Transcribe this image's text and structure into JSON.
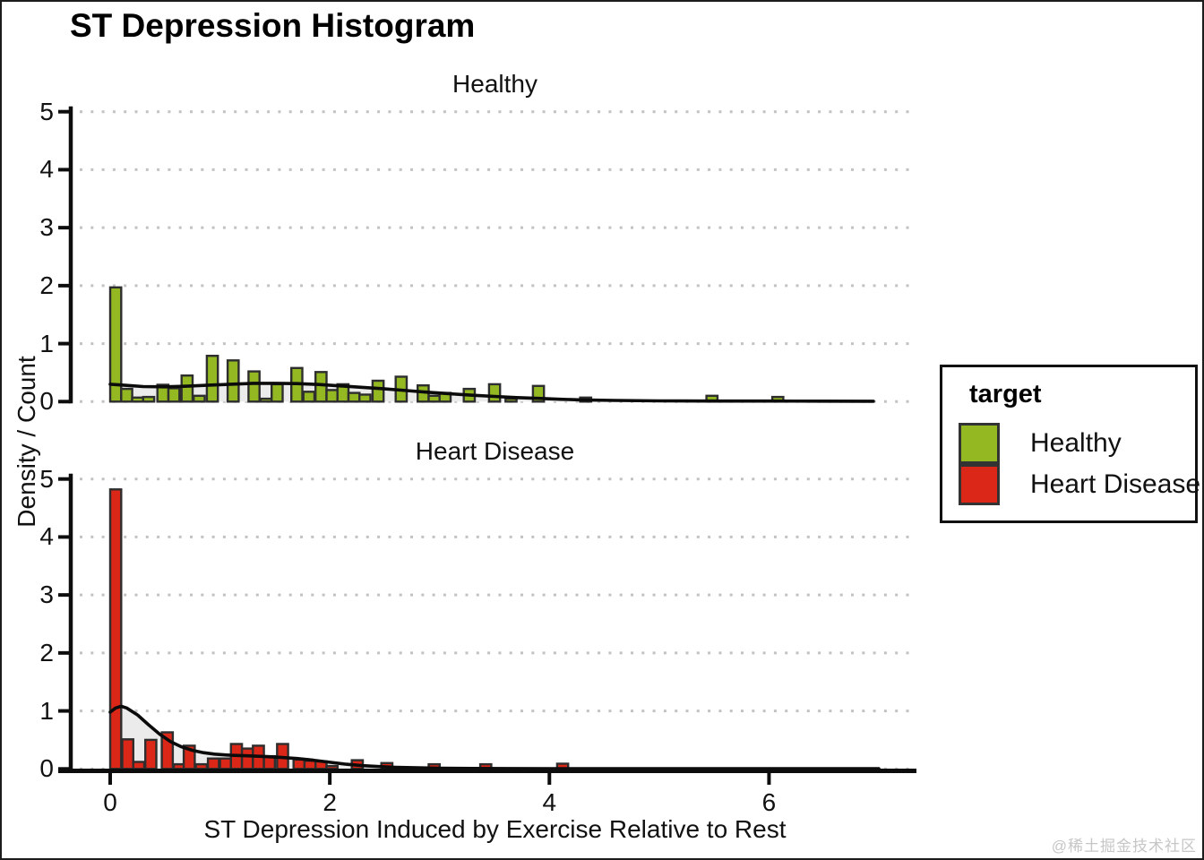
{
  "colors": {
    "healthy": "#93B821",
    "heart_disease": "#DB2718",
    "bar_border": "#2E2E2E",
    "density_fill": "#EBEBEB",
    "density_line": "#0B0B0B",
    "gridline": "#C2C2C2",
    "axis": "#0D0D0D",
    "watermark_text": "#C6C6C6"
  },
  "legend": {
    "title": "target",
    "items": [
      {
        "label": "Healthy",
        "color": "#93B821"
      },
      {
        "label": "Heart Disease",
        "color": "#DB2718"
      }
    ]
  },
  "watermark": "@稀土掘金技术社区",
  "chart_data": {
    "type": "histogram",
    "title": "ST Depression Histogram",
    "xlabel": "ST Depression Induced by Exercise Relative to Rest",
    "ylabel": "Density / Count",
    "xlim": [
      0,
      7.3
    ],
    "ylim": [
      0,
      5
    ],
    "x_ticks": [
      0,
      2,
      4,
      6
    ],
    "y_ticks": [
      0,
      1,
      2,
      3,
      4,
      5
    ],
    "bin_width": 0.1,
    "grid": "horizontal-dotted",
    "legend_position": "right",
    "overlay": "kernel-density-curve",
    "facets": [
      {
        "label": "Healthy",
        "color": "#93B821",
        "bars": [
          [
            0.05,
            1.97
          ],
          [
            0.15,
            0.22
          ],
          [
            0.25,
            0.07
          ],
          [
            0.35,
            0.08
          ],
          [
            0.48,
            0.29
          ],
          [
            0.58,
            0.23
          ],
          [
            0.7,
            0.45
          ],
          [
            0.81,
            0.1
          ],
          [
            0.93,
            0.79
          ],
          [
            1.12,
            0.71
          ],
          [
            1.31,
            0.52
          ],
          [
            1.42,
            0.05
          ],
          [
            1.52,
            0.3
          ],
          [
            1.7,
            0.58
          ],
          [
            1.81,
            0.17
          ],
          [
            1.92,
            0.51
          ],
          [
            2.02,
            0.2
          ],
          [
            2.12,
            0.3
          ],
          [
            2.22,
            0.15
          ],
          [
            2.32,
            0.12
          ],
          [
            2.44,
            0.36
          ],
          [
            2.65,
            0.43
          ],
          [
            2.85,
            0.28
          ],
          [
            2.95,
            0.1
          ],
          [
            3.05,
            0.15
          ],
          [
            3.27,
            0.22
          ],
          [
            3.5,
            0.3
          ],
          [
            3.65,
            0.05
          ],
          [
            3.9,
            0.27
          ],
          [
            4.33,
            0.07
          ],
          [
            5.48,
            0.1
          ],
          [
            6.08,
            0.08
          ]
        ],
        "density": [
          [
            0,
            0.3
          ],
          [
            0.15,
            0.28
          ],
          [
            0.3,
            0.26
          ],
          [
            0.5,
            0.255
          ],
          [
            0.7,
            0.265
          ],
          [
            0.9,
            0.285
          ],
          [
            1.1,
            0.3
          ],
          [
            1.3,
            0.315
          ],
          [
            1.5,
            0.315
          ],
          [
            1.7,
            0.31
          ],
          [
            1.9,
            0.295
          ],
          [
            2.1,
            0.27
          ],
          [
            2.3,
            0.245
          ],
          [
            2.5,
            0.22
          ],
          [
            2.7,
            0.19
          ],
          [
            2.9,
            0.16
          ],
          [
            3.1,
            0.135
          ],
          [
            3.3,
            0.11
          ],
          [
            3.5,
            0.09
          ],
          [
            3.7,
            0.07
          ],
          [
            3.9,
            0.055
          ],
          [
            4.1,
            0.04
          ],
          [
            4.3,
            0.03
          ],
          [
            4.6,
            0.02
          ],
          [
            5.0,
            0.012
          ],
          [
            5.5,
            0.01
          ],
          [
            6.0,
            0.01
          ],
          [
            6.5,
            0.008
          ],
          [
            6.95,
            0.006
          ]
        ]
      },
      {
        "label": "Heart Disease",
        "color": "#DB2718",
        "bars": [
          [
            0.05,
            4.82
          ],
          [
            0.16,
            0.51
          ],
          [
            0.26,
            0.12
          ],
          [
            0.37,
            0.5
          ],
          [
            0.52,
            0.63
          ],
          [
            0.63,
            0.08
          ],
          [
            0.72,
            0.4
          ],
          [
            0.83,
            0.08
          ],
          [
            0.94,
            0.18
          ],
          [
            1.05,
            0.18
          ],
          [
            1.15,
            0.43
          ],
          [
            1.25,
            0.35
          ],
          [
            1.35,
            0.4
          ],
          [
            1.45,
            0.22
          ],
          [
            1.57,
            0.43
          ],
          [
            1.72,
            0.16
          ],
          [
            1.82,
            0.14
          ],
          [
            1.92,
            0.13
          ],
          [
            2.02,
            0.05
          ],
          [
            2.25,
            0.15
          ],
          [
            2.52,
            0.1
          ],
          [
            2.95,
            0.08
          ],
          [
            3.42,
            0.08
          ],
          [
            4.12,
            0.09
          ]
        ],
        "density": [
          [
            0,
            0.98
          ],
          [
            0.05,
            1.05
          ],
          [
            0.1,
            1.08
          ],
          [
            0.15,
            1.05
          ],
          [
            0.25,
            0.93
          ],
          [
            0.35,
            0.76
          ],
          [
            0.45,
            0.6
          ],
          [
            0.55,
            0.47
          ],
          [
            0.65,
            0.38
          ],
          [
            0.75,
            0.32
          ],
          [
            0.85,
            0.28
          ],
          [
            0.95,
            0.255
          ],
          [
            1.1,
            0.235
          ],
          [
            1.25,
            0.225
          ],
          [
            1.4,
            0.215
          ],
          [
            1.55,
            0.2
          ],
          [
            1.7,
            0.18
          ],
          [
            1.85,
            0.15
          ],
          [
            2.0,
            0.115
          ],
          [
            2.15,
            0.08
          ],
          [
            2.3,
            0.055
          ],
          [
            2.45,
            0.04
          ],
          [
            2.6,
            0.028
          ],
          [
            2.8,
            0.018
          ],
          [
            3.0,
            0.012
          ],
          [
            3.3,
            0.008
          ],
          [
            3.6,
            0.006
          ],
          [
            4.0,
            0.005
          ],
          [
            4.5,
            0.004
          ],
          [
            5.0,
            0.004
          ],
          [
            5.5,
            0.003
          ],
          [
            6.0,
            0.003
          ],
          [
            6.5,
            0.003
          ],
          [
            7.0,
            0.003
          ]
        ]
      }
    ]
  }
}
